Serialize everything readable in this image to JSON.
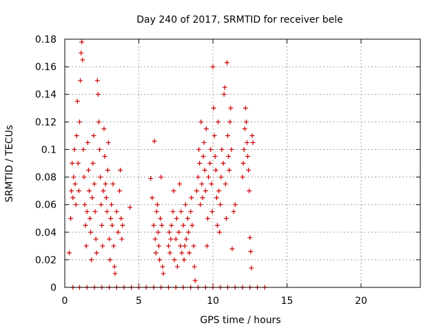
{
  "chart_data": {
    "type": "scatter",
    "title": "Day 240 of 2017, SRMTID for receiver bele",
    "xlabel": "GPS time / hours",
    "ylabel": "SRMTID / TECUs",
    "xlim": [
      0,
      24
    ],
    "ylim": [
      0,
      0.18
    ],
    "x_ticks": [
      0,
      5,
      10,
      15,
      20
    ],
    "x_tick_labels": [
      "0",
      "5",
      "10",
      "15",
      "20"
    ],
    "y_ticks": [
      0,
      0.02,
      0.04,
      0.06,
      0.08,
      0.1,
      0.12,
      0.14,
      0.16,
      0.18
    ],
    "y_tick_labels": [
      "0",
      "0.02",
      "0.04",
      "0.06",
      "0.08",
      "0.1",
      "0.12",
      "0.14",
      "0.16",
      "0.18"
    ],
    "grid": true,
    "marker": "+",
    "color": "#cc0000",
    "series": [
      {
        "name": "SRMTID",
        "points": [
          [
            0.3,
            0.025
          ],
          [
            0.4,
            0.05
          ],
          [
            0.45,
            0.07
          ],
          [
            0.5,
            0.09
          ],
          [
            0.55,
            0.065
          ],
          [
            0.6,
            0.08
          ],
          [
            0.65,
            0.1
          ],
          [
            0.7,
            0.075
          ],
          [
            0.75,
            0.06
          ],
          [
            0.8,
            0.11
          ],
          [
            0.85,
            0.135
          ],
          [
            0.9,
            0.09
          ],
          [
            0.95,
            0.07
          ],
          [
            1.0,
            0.12
          ],
          [
            1.05,
            0.15
          ],
          [
            1.1,
            0.17
          ],
          [
            1.15,
            0.178
          ],
          [
            1.2,
            0.165
          ],
          [
            1.25,
            0.1
          ],
          [
            1.3,
            0.08
          ],
          [
            1.35,
            0.06
          ],
          [
            1.4,
            0.045
          ],
          [
            1.45,
            0.03
          ],
          [
            1.5,
            0.055
          ],
          [
            1.55,
            0.105
          ],
          [
            1.6,
            0.085
          ],
          [
            1.65,
            0.07
          ],
          [
            1.7,
            0.05
          ],
          [
            1.75,
            0.04
          ],
          [
            1.8,
            0.02
          ],
          [
            1.85,
            0.065
          ],
          [
            1.9,
            0.09
          ],
          [
            1.95,
            0.11
          ],
          [
            2.0,
            0.075
          ],
          [
            2.05,
            0.055
          ],
          [
            2.1,
            0.035
          ],
          [
            2.15,
            0.025
          ],
          [
            2.2,
            0.15
          ],
          [
            2.25,
            0.14
          ],
          [
            2.3,
            0.12
          ],
          [
            2.35,
            0.1
          ],
          [
            2.4,
            0.08
          ],
          [
            2.45,
            0.06
          ],
          [
            2.5,
            0.045
          ],
          [
            2.55,
            0.03
          ],
          [
            2.6,
            0.07
          ],
          [
            2.65,
            0.115
          ],
          [
            2.7,
            0.095
          ],
          [
            2.75,
            0.075
          ],
          [
            2.8,
            0.065
          ],
          [
            2.85,
            0.055
          ],
          [
            2.9,
            0.085
          ],
          [
            2.95,
            0.105
          ],
          [
            3.0,
            0.035
          ],
          [
            3.05,
            0.02
          ],
          [
            3.1,
            0.05
          ],
          [
            3.15,
            0.06
          ],
          [
            3.2,
            0.045
          ],
          [
            3.25,
            0.075
          ],
          [
            3.3,
            0.03
          ],
          [
            3.35,
            0.015
          ],
          [
            3.4,
            0.01
          ],
          [
            3.5,
            0.055
          ],
          [
            3.6,
            0.04
          ],
          [
            3.7,
            0.07
          ],
          [
            3.75,
            0.085
          ],
          [
            3.8,
            0.05
          ],
          [
            3.85,
            0.035
          ],
          [
            3.9,
            0.045
          ],
          [
            4.4,
            0.058
          ],
          [
            5.8,
            0.079
          ],
          [
            5.9,
            0.065
          ],
          [
            6.0,
            0.045
          ],
          [
            6.05,
            0.106
          ],
          [
            6.1,
            0.035
          ],
          [
            6.15,
            0.025
          ],
          [
            6.2,
            0.055
          ],
          [
            6.25,
            0.06
          ],
          [
            6.3,
            0.04
          ],
          [
            6.35,
            0.03
          ],
          [
            6.4,
            0.02
          ],
          [
            6.45,
            0.05
          ],
          [
            6.5,
            0.08
          ],
          [
            6.55,
            0.045
          ],
          [
            6.6,
            0.015
          ],
          [
            6.65,
            0.01
          ],
          [
            7.0,
            0.03
          ],
          [
            7.05,
            0.04
          ],
          [
            7.1,
            0.025
          ],
          [
            7.15,
            0.035
          ],
          [
            7.2,
            0.045
          ],
          [
            7.3,
            0.055
          ],
          [
            7.35,
            0.07
          ],
          [
            7.4,
            0.02
          ],
          [
            7.5,
            0.035
          ],
          [
            7.55,
            0.05
          ],
          [
            7.6,
            0.015
          ],
          [
            7.7,
            0.04
          ],
          [
            7.75,
            0.075
          ],
          [
            7.8,
            0.03
          ],
          [
            7.85,
            0.055
          ],
          [
            7.9,
            0.025
          ],
          [
            8.0,
            0.045
          ],
          [
            8.05,
            0.02
          ],
          [
            8.1,
            0.03
          ],
          [
            8.15,
            0.06
          ],
          [
            8.2,
            0.035
          ],
          [
            8.3,
            0.05
          ],
          [
            8.35,
            0.04
          ],
          [
            8.4,
            0.025
          ],
          [
            8.5,
            0.055
          ],
          [
            8.55,
            0.065
          ],
          [
            8.6,
            0.045
          ],
          [
            8.7,
            0.03
          ],
          [
            8.75,
            0.015
          ],
          [
            8.8,
            0.005
          ],
          [
            8.9,
            0.07
          ],
          [
            9.0,
            0.08
          ],
          [
            9.05,
            0.1
          ],
          [
            9.1,
            0.09
          ],
          [
            9.15,
            0.06
          ],
          [
            9.2,
            0.12
          ],
          [
            9.25,
            0.075
          ],
          [
            9.3,
            0.065
          ],
          [
            9.35,
            0.095
          ],
          [
            9.4,
            0.105
          ],
          [
            9.45,
            0.085
          ],
          [
            9.5,
            0.07
          ],
          [
            9.55,
            0.115
          ],
          [
            9.6,
            0.03
          ],
          [
            9.65,
            0.05
          ],
          [
            9.7,
            0.08
          ],
          [
            9.8,
            0.09
          ],
          [
            9.85,
            0.1
          ],
          [
            9.9,
            0.075
          ],
          [
            9.95,
            0.055
          ],
          [
            10.0,
            0.16
          ],
          [
            10.05,
            0.13
          ],
          [
            10.1,
            0.11
          ],
          [
            10.15,
            0.095
          ],
          [
            10.2,
            0.085
          ],
          [
            10.25,
            0.065
          ],
          [
            10.3,
            0.045
          ],
          [
            10.35,
            0.12
          ],
          [
            10.4,
            0.07
          ],
          [
            10.45,
            0.04
          ],
          [
            10.5,
            0.06
          ],
          [
            10.55,
            0.08
          ],
          [
            10.6,
            0.1
          ],
          [
            10.7,
            0.09
          ],
          [
            10.75,
            0.14
          ],
          [
            10.8,
            0.145
          ],
          [
            10.85,
            0.075
          ],
          [
            10.9,
            0.05
          ],
          [
            10.95,
            0.163
          ],
          [
            11.0,
            0.11
          ],
          [
            11.05,
            0.095
          ],
          [
            11.1,
            0.085
          ],
          [
            11.15,
            0.12
          ],
          [
            11.2,
            0.13
          ],
          [
            11.25,
            0.1
          ],
          [
            11.3,
            0.028
          ],
          [
            11.4,
            0.055
          ],
          [
            11.5,
            0.06
          ],
          [
            12.0,
            0.08
          ],
          [
            12.05,
            0.09
          ],
          [
            12.1,
            0.1
          ],
          [
            12.15,
            0.115
          ],
          [
            12.2,
            0.13
          ],
          [
            12.25,
            0.12
          ],
          [
            12.3,
            0.105
          ],
          [
            12.35,
            0.095
          ],
          [
            12.4,
            0.085
          ],
          [
            12.45,
            0.07
          ],
          [
            12.5,
            0.036
          ],
          [
            12.55,
            0.026
          ],
          [
            12.6,
            0.014
          ],
          [
            12.65,
            0.11
          ],
          [
            12.7,
            0.105
          ],
          [
            0.55,
            0
          ],
          [
            1.0,
            0
          ],
          [
            1.5,
            0
          ],
          [
            2.0,
            0
          ],
          [
            2.5,
            0
          ],
          [
            3.0,
            0
          ],
          [
            3.5,
            0
          ],
          [
            4.0,
            0
          ],
          [
            4.5,
            0
          ],
          [
            5.0,
            0
          ],
          [
            5.5,
            0
          ],
          [
            6.0,
            0
          ],
          [
            6.5,
            0
          ],
          [
            7.0,
            0
          ],
          [
            7.5,
            0
          ],
          [
            8.0,
            0
          ],
          [
            8.5,
            0
          ],
          [
            9.0,
            0
          ],
          [
            9.5,
            0
          ],
          [
            10.0,
            0
          ],
          [
            10.5,
            0
          ],
          [
            11.0,
            0
          ],
          [
            11.5,
            0
          ],
          [
            12.0,
            0
          ],
          [
            12.5,
            0
          ],
          [
            13.0,
            0
          ],
          [
            13.5,
            0
          ]
        ]
      }
    ]
  }
}
